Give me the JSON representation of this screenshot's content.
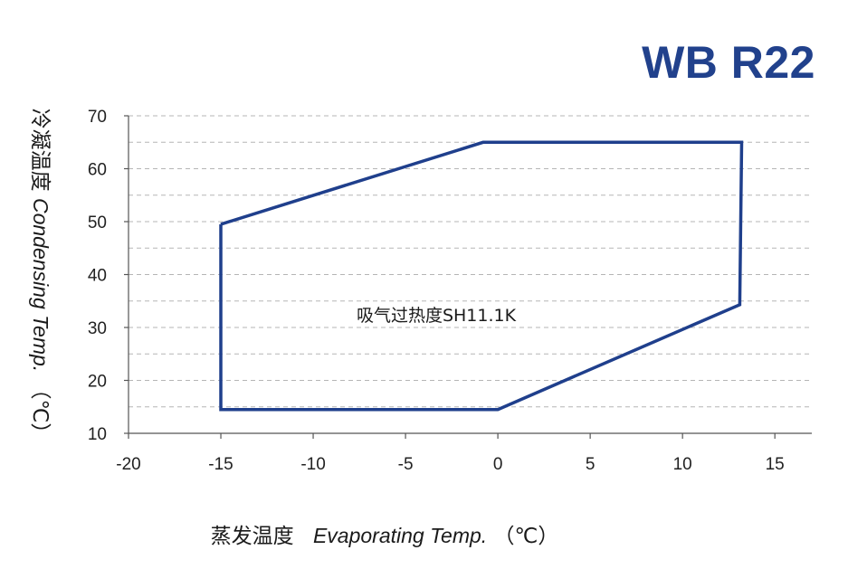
{
  "chart_data": {
    "type": "line",
    "title": "WB R22",
    "xlabel": {
      "cn": "蒸发温度",
      "en": "Evaporating Temp.",
      "unit": "（℃）"
    },
    "ylabel": {
      "cn": "冷凝温度",
      "en": "Condensing Temp.",
      "unit": "（℃）"
    },
    "xlim": [
      -20,
      17
    ],
    "ylim": [
      10,
      70
    ],
    "x_ticks": [
      -20,
      -15,
      -10,
      -5,
      0,
      5,
      10,
      15
    ],
    "y_ticks": [
      10,
      20,
      30,
      40,
      50,
      60,
      70
    ],
    "grid": "horizontal-dashed",
    "envelope": {
      "x": [
        -15,
        -0.8,
        13.2,
        13.1,
        0,
        -15,
        -15
      ],
      "y": [
        49.5,
        65,
        65,
        34.3,
        14.5,
        14.5,
        49.5
      ]
    },
    "annotation": "吸气过热度SH11.1K",
    "colors": {
      "envelope": "#1f3f8c",
      "title": "#21418c",
      "grid": "#b5b5b5",
      "axis": "#555555"
    }
  }
}
